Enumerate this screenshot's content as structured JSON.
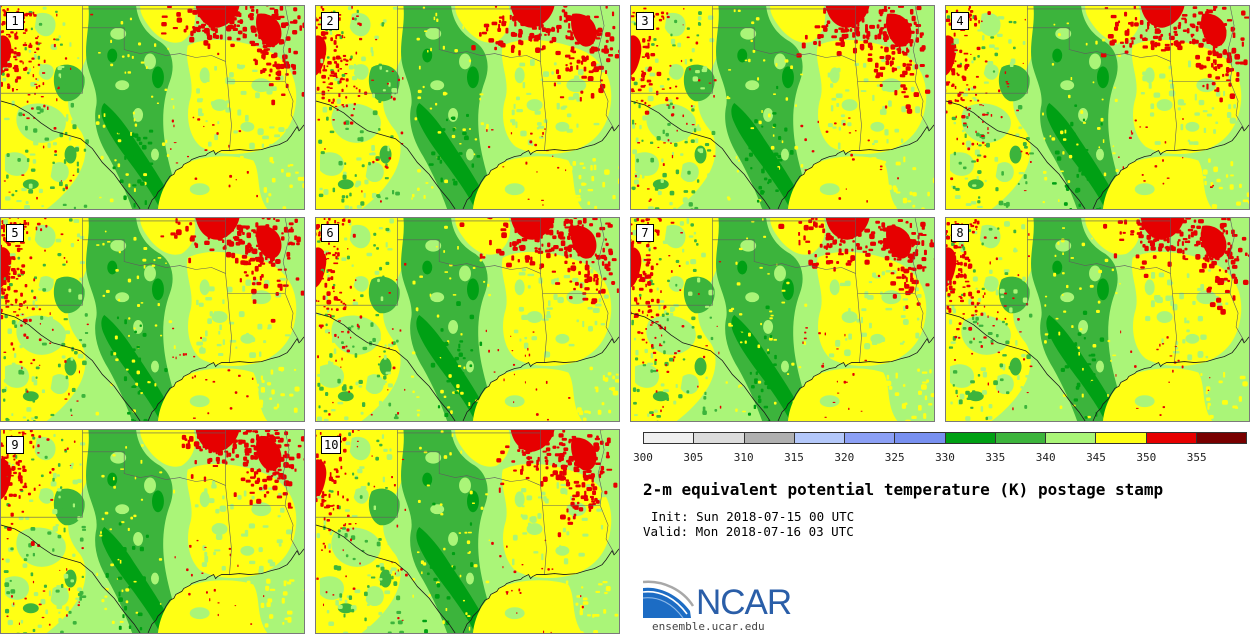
{
  "figure": {
    "title": "2-m equivalent potential temperature (K) postage stamp",
    "init": "Init: Sun 2018-07-15 00 UTC",
    "valid": "Valid: Mon 2018-07-16 03 UTC"
  },
  "panels": [
    {
      "label": "1"
    },
    {
      "label": "2"
    },
    {
      "label": "3"
    },
    {
      "label": "4"
    },
    {
      "label": "5"
    },
    {
      "label": "6"
    },
    {
      "label": "7"
    },
    {
      "label": "8"
    },
    {
      "label": "9"
    },
    {
      "label": "10"
    }
  ],
  "colorbar": {
    "ticks": [
      300,
      305,
      310,
      315,
      320,
      325,
      330,
      335,
      340,
      345,
      350,
      355
    ],
    "colors": [
      "#f0f0f0",
      "#dcdcdc",
      "#b0b0b0",
      "#b4c8fa",
      "#8ca0f5",
      "#7890f0",
      "#00a014",
      "#3cb43c",
      "#aaf578",
      "#ffff14",
      "#e60000",
      "#780000"
    ]
  },
  "logo": {
    "text": "NCAR",
    "site": "ensemble.ucar.edu"
  }
}
